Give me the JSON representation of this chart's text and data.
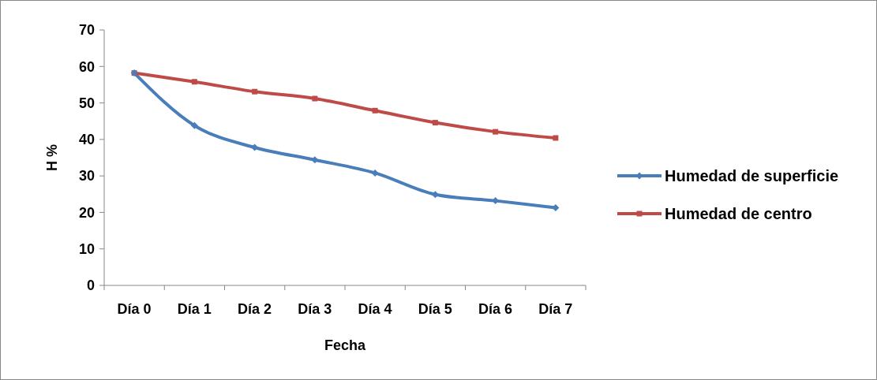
{
  "chart_data": {
    "type": "line",
    "xlabel": "Fecha",
    "ylabel": "H %",
    "categories": [
      "Día 0",
      "Día 1",
      "Día 2",
      "Día 3",
      "Día 4",
      "Día 5",
      "Día 6",
      "Día 7"
    ],
    "series": [
      {
        "name": "Humedad de superficie",
        "color": "#4a7ebb",
        "marker": "diamond",
        "values": [
          58.2,
          43.8,
          37.8,
          34.4,
          30.8,
          24.9,
          23.2,
          21.3
        ]
      },
      {
        "name": "Humedad de centro",
        "color": "#be4b48",
        "marker": "square",
        "values": [
          58.2,
          55.8,
          53.1,
          51.2,
          47.9,
          44.6,
          42.1,
          40.4
        ]
      }
    ],
    "ylim": [
      0,
      70
    ],
    "yticks": [
      0,
      10,
      20,
      30,
      40,
      50,
      60,
      70
    ],
    "grid": false,
    "legend": "right"
  }
}
